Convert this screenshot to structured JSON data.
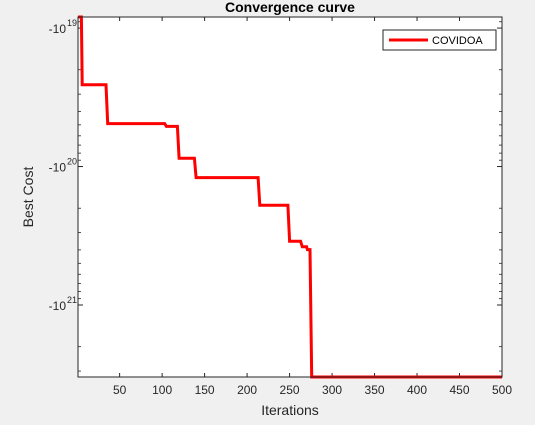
{
  "chart_data": {
    "type": "line",
    "title": "Convergence curve",
    "xlabel": "Iterations",
    "ylabel": "Best Cost",
    "xlim": [
      1,
      500
    ],
    "ylim_magnitude_log10": [
      18.92,
      21.52
    ],
    "y_scale": "log of negative values (axis shows -10^n)",
    "x_ticks": [
      50,
      100,
      150,
      200,
      250,
      300,
      350,
      400,
      450,
      500
    ],
    "y_ticks": [
      {
        "exp": 19,
        "base": "-10",
        "power": "19"
      },
      {
        "exp": 20,
        "base": "-10",
        "power": "20"
      },
      {
        "exp": 21,
        "base": "-10",
        "power": "21"
      }
    ],
    "grid": false,
    "legend_position": "top-right",
    "series": [
      {
        "name": "COVIDOA",
        "color": "#ff0000",
        "step": true,
        "points": [
          {
            "x": 1,
            "y_exp": 18.92
          },
          {
            "x": 5,
            "y_exp": 18.92
          },
          {
            "x": 6,
            "y_exp": 19.41
          },
          {
            "x": 34,
            "y_exp": 19.41
          },
          {
            "x": 36,
            "y_exp": 19.69
          },
          {
            "x": 103,
            "y_exp": 19.69
          },
          {
            "x": 105,
            "y_exp": 19.71
          },
          {
            "x": 118,
            "y_exp": 19.71
          },
          {
            "x": 120,
            "y_exp": 19.94
          },
          {
            "x": 138,
            "y_exp": 19.94
          },
          {
            "x": 140,
            "y_exp": 20.08
          },
          {
            "x": 213,
            "y_exp": 20.08
          },
          {
            "x": 215,
            "y_exp": 20.28
          },
          {
            "x": 248,
            "y_exp": 20.28
          },
          {
            "x": 250,
            "y_exp": 20.54
          },
          {
            "x": 263,
            "y_exp": 20.54
          },
          {
            "x": 265,
            "y_exp": 20.58
          },
          {
            "x": 270,
            "y_exp": 20.58
          },
          {
            "x": 271,
            "y_exp": 20.6
          },
          {
            "x": 274,
            "y_exp": 20.6
          },
          {
            "x": 276,
            "y_exp": 21.52
          },
          {
            "x": 500,
            "y_exp": 21.52
          }
        ]
      }
    ]
  }
}
